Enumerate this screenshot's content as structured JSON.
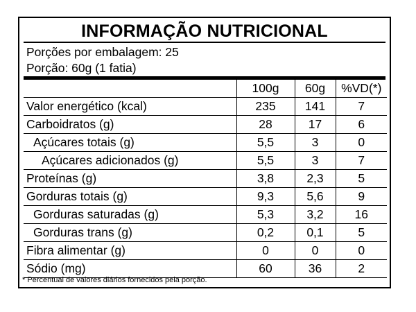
{
  "label": {
    "title": "INFORMAÇÃO NUTRICIONAL",
    "servings_per_package": "Porções por embalagem: 25",
    "serving_size": "Porção: 60g (1 fatia)",
    "columns": [
      "",
      "100g",
      "60g",
      "%VD(*)"
    ],
    "rows": [
      {
        "name": "Valor energético (kcal)",
        "indent": 0,
        "per100g": "235",
        "perPortion": "141",
        "dv": "7"
      },
      {
        "name": "Carboidratos (g)",
        "indent": 0,
        "per100g": "28",
        "perPortion": "17",
        "dv": "6"
      },
      {
        "name": "Açúcares totais (g)",
        "indent": 1,
        "per100g": "5,5",
        "perPortion": "3",
        "dv": "0"
      },
      {
        "name": "Açúcares adicionados (g)",
        "indent": 2,
        "per100g": "5,5",
        "perPortion": "3",
        "dv": "7"
      },
      {
        "name": "Proteínas (g)",
        "indent": 0,
        "per100g": "3,8",
        "perPortion": "2,3",
        "dv": "5"
      },
      {
        "name": "Gorduras totais (g)",
        "indent": 0,
        "per100g": "9,3",
        "perPortion": "5,6",
        "dv": "9"
      },
      {
        "name": "Gorduras saturadas (g)",
        "indent": 1,
        "per100g": "5,3",
        "perPortion": "3,2",
        "dv": "16"
      },
      {
        "name": "Gorduras trans (g)",
        "indent": 1,
        "per100g": "0,2",
        "perPortion": "0,1",
        "dv": "5"
      },
      {
        "name": "Fibra alimentar (g)",
        "indent": 0,
        "per100g": "0",
        "perPortion": "0",
        "dv": "0"
      },
      {
        "name": "Sódio (mg)",
        "indent": 0,
        "per100g": "60",
        "perPortion": "36",
        "dv": "2"
      }
    ],
    "footnote": "* Percentual de valores diários fornecidos pela porção."
  }
}
